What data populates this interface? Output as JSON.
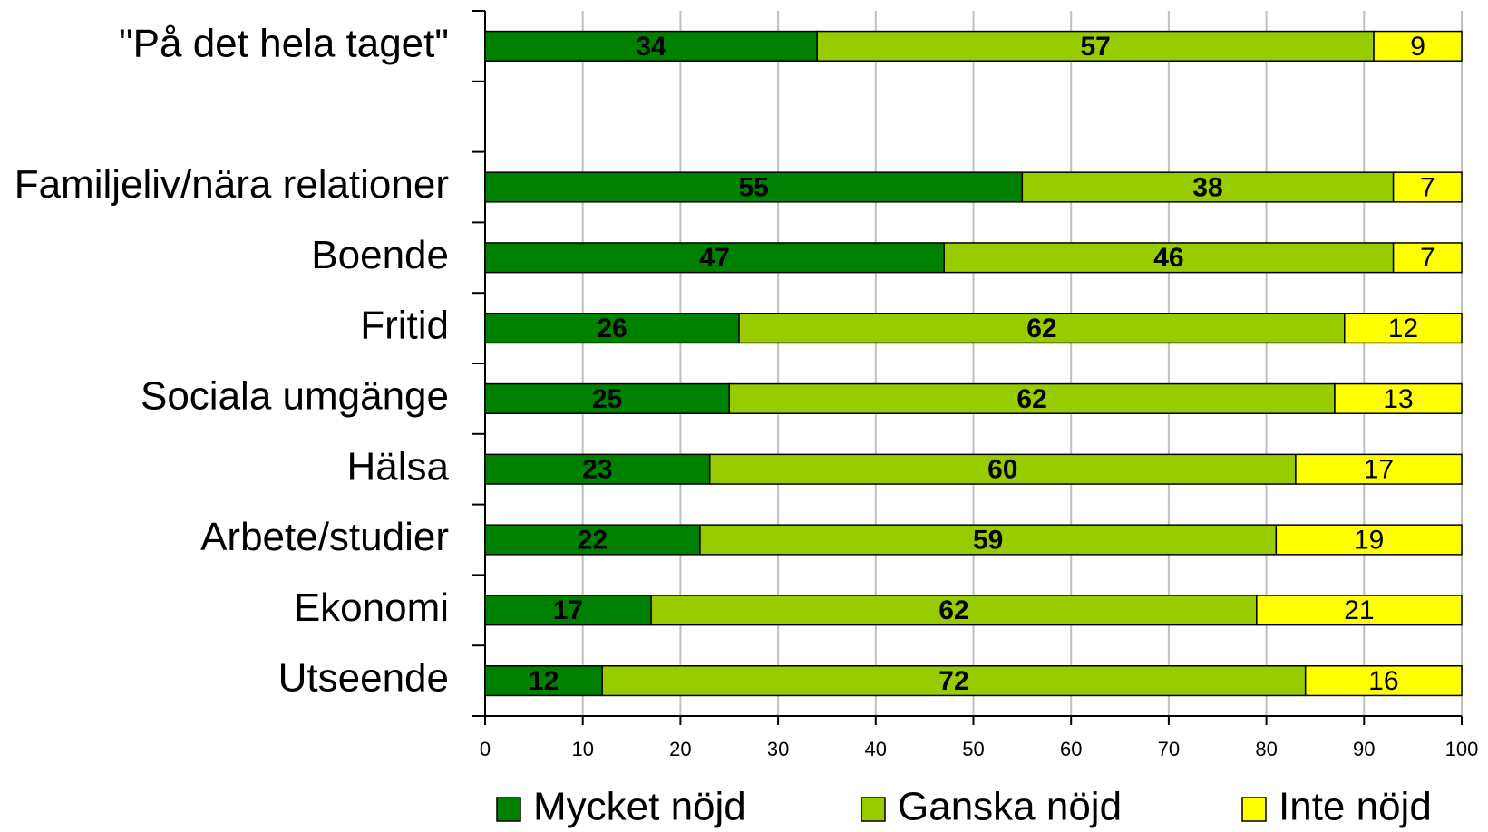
{
  "chart_data": {
    "type": "stacked-bar-horizontal",
    "categories": [
      "\"På det hela taget\"",
      null,
      "Familjeliv/nära relationer",
      "Boende",
      "Fritid",
      "Sociala umgänge",
      "Hälsa",
      "Arbete/studier",
      "Ekonomi",
      "Utseende"
    ],
    "series": [
      {
        "name": "Mycket nöjd",
        "color": "#008000",
        "values": [
          34,
          null,
          55,
          47,
          26,
          25,
          23,
          22,
          17,
          12
        ]
      },
      {
        "name": "Ganska nöjd",
        "color": "#99cc00",
        "values": [
          57,
          null,
          38,
          46,
          62,
          62,
          60,
          59,
          62,
          72
        ]
      },
      {
        "name": "Inte nöjd",
        "color": "#ffff00",
        "values": [
          9,
          null,
          7,
          7,
          12,
          13,
          17,
          19,
          21,
          16
        ]
      }
    ],
    "xlim": [
      0,
      100
    ],
    "xticks": [
      0,
      10,
      20,
      30,
      40,
      50,
      60,
      70,
      80,
      90,
      100
    ],
    "grid": true
  }
}
